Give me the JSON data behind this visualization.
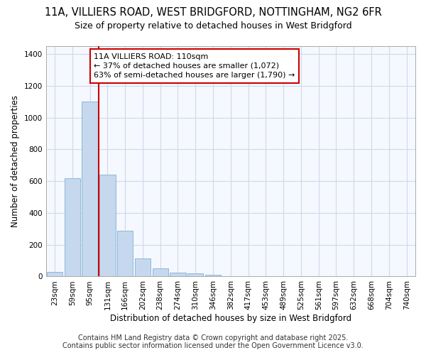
{
  "title_line1": "11A, VILLIERS ROAD, WEST BRIDGFORD, NOTTINGHAM, NG2 6FR",
  "title_line2": "Size of property relative to detached houses in West Bridgford",
  "xlabel": "Distribution of detached houses by size in West Bridgford",
  "ylabel": "Number of detached properties",
  "categories": [
    "23sqm",
    "59sqm",
    "95sqm",
    "131sqm",
    "166sqm",
    "202sqm",
    "238sqm",
    "274sqm",
    "310sqm",
    "346sqm",
    "382sqm",
    "417sqm",
    "453sqm",
    "489sqm",
    "525sqm",
    "561sqm",
    "597sqm",
    "632sqm",
    "668sqm",
    "704sqm",
    "740sqm"
  ],
  "values": [
    30,
    620,
    1100,
    640,
    290,
    115,
    50,
    25,
    20,
    10,
    0,
    0,
    0,
    0,
    0,
    0,
    0,
    0,
    0,
    0,
    0
  ],
  "bar_color": "#c5d8ee",
  "bar_edge_color": "#8db8d8",
  "background_color": "#ffffff",
  "axes_background": "#f5f8ff",
  "grid_color": "#d0d8e8",
  "annotation_text": "11A VILLIERS ROAD: 110sqm\n← 37% of detached houses are smaller (1,072)\n63% of semi-detached houses are larger (1,790) →",
  "annotation_box_color": "#ffffff",
  "annotation_box_edge_color": "#cc0000",
  "vline_color": "#cc0000",
  "vline_x_index": 2,
  "ylim": [
    0,
    1450
  ],
  "yticks": [
    0,
    200,
    400,
    600,
    800,
    1000,
    1200,
    1400
  ],
  "footer_line1": "Contains HM Land Registry data © Crown copyright and database right 2025.",
  "footer_line2": "Contains public sector information licensed under the Open Government Licence v3.0.",
  "title_fontsize": 10.5,
  "subtitle_fontsize": 9,
  "axis_label_fontsize": 8.5,
  "tick_fontsize": 7.5,
  "annotation_fontsize": 8,
  "footer_fontsize": 7
}
